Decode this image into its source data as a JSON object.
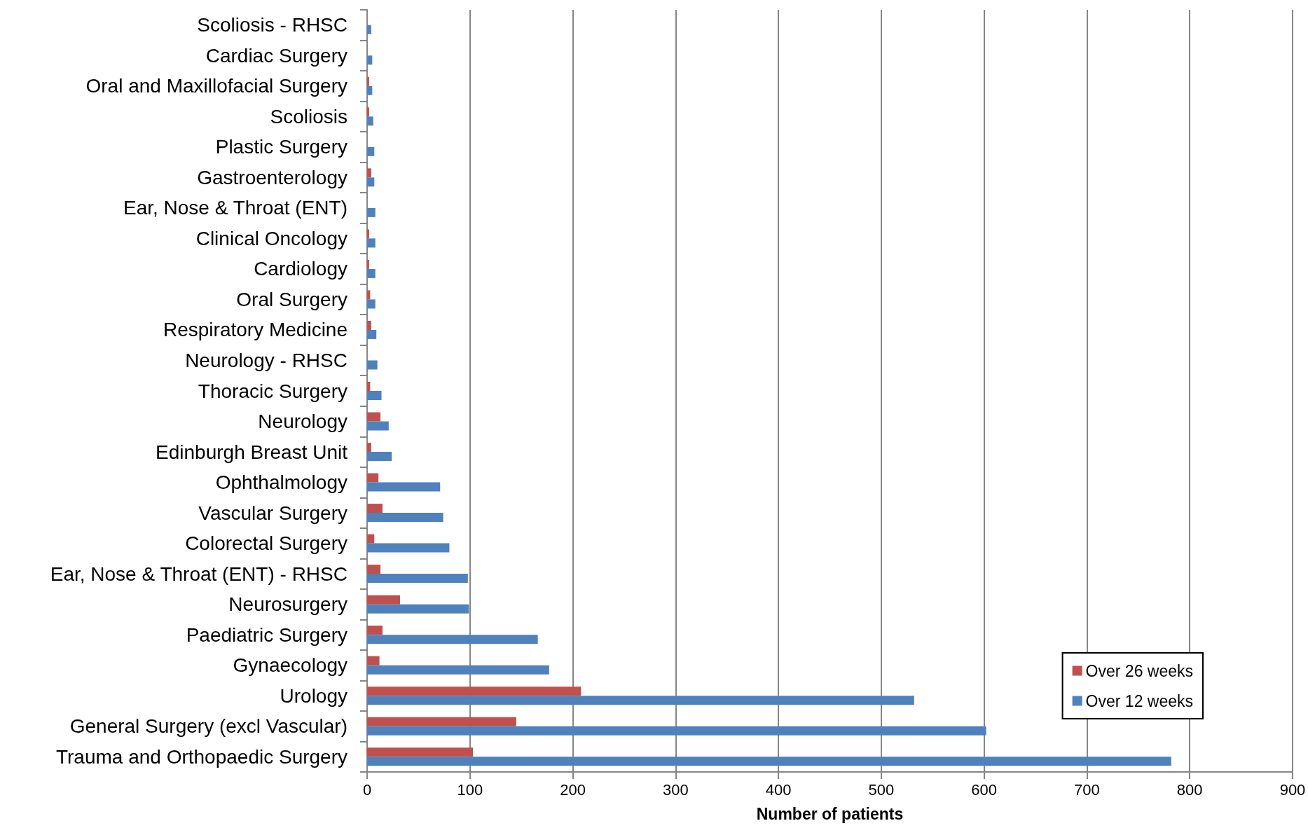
{
  "chart_data": {
    "type": "bar",
    "orientation": "horizontal",
    "xlabel": "Number of patients",
    "categories": [
      "Scoliosis - RHSC",
      "Cardiac Surgery",
      "Oral and Maxillofacial Surgery",
      "Scoliosis",
      "Plastic Surgery",
      "Gastroenterology",
      "Ear, Nose & Throat (ENT)",
      "Clinical Oncology",
      "Cardiology",
      "Oral Surgery",
      "Respiratory Medicine",
      "Neurology - RHSC",
      "Thoracic Surgery",
      "Neurology",
      "Edinburgh Breast Unit",
      "Ophthalmology",
      "Vascular Surgery",
      "Colorectal Surgery",
      "Ear, Nose & Throat (ENT) - RHSC",
      "Neurosurgery",
      "Paediatric Surgery",
      "Gynaecology",
      "Urology",
      "General Surgery (excl Vascular)",
      "Trauma and Orthopaedic Surgery"
    ],
    "series": [
      {
        "name": "Over 26 weeks",
        "color": "#c0504d",
        "values": [
          null,
          0,
          2,
          2,
          0,
          4,
          0,
          2,
          2,
          3,
          4,
          0,
          3,
          13,
          4,
          11,
          15,
          7,
          13,
          32,
          15,
          12,
          208,
          145,
          103
        ]
      },
      {
        "name": "Over 12 weeks",
        "color": "#4f81bd",
        "values": [
          4,
          5,
          5,
          6,
          7,
          7,
          8,
          8,
          8,
          8,
          9,
          10,
          14,
          21,
          24,
          71,
          74,
          80,
          98,
          99,
          166,
          177,
          532,
          602,
          782
        ]
      }
    ],
    "xlim": [
      0,
      900
    ],
    "xticks": [
      0,
      100,
      200,
      300,
      400,
      500,
      600,
      700,
      800,
      900
    ],
    "grid": "x",
    "legend": "bottom right"
  }
}
